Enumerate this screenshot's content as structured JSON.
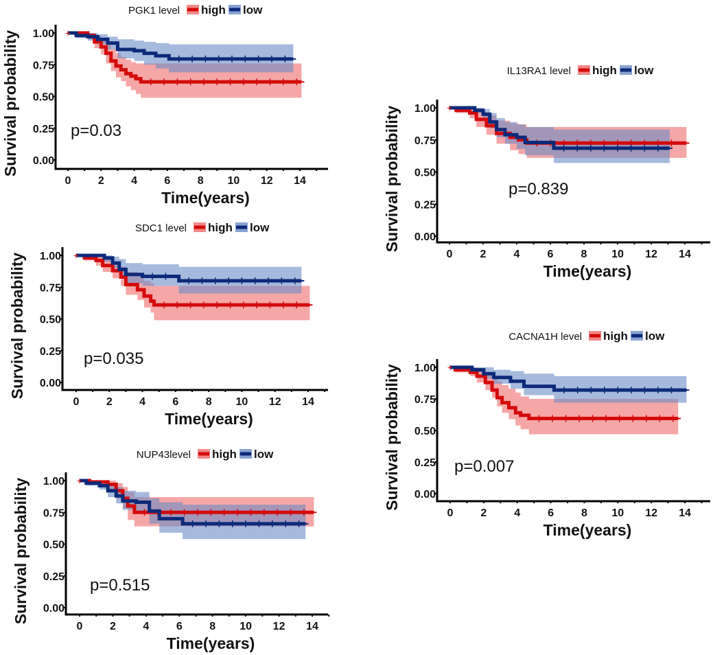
{
  "colors": {
    "high_line": "#d40b0b",
    "high_band": "#ee6b6b",
    "low_line": "#0d2a7a",
    "low_band": "#6b8cc6",
    "axis": "#000000"
  },
  "chart_data": [
    {
      "type": "line",
      "id": "pgk1",
      "title": "PGK1 level",
      "legend": [
        "high",
        "low"
      ],
      "legend_placement": "top",
      "xlabel": "Time(years)",
      "ylabel": "Survival probability",
      "xlim": [
        -0.5,
        15.5
      ],
      "ylim": [
        0,
        1
      ],
      "xticks": [
        "0",
        "2",
        "4",
        "6",
        "8",
        "10",
        "12",
        "14"
      ],
      "yticks": [
        "0.00",
        "0.25",
        "0.50",
        "0.75",
        "1.00"
      ],
      "p_value": "p=0.03",
      "series": [
        {
          "name": "high",
          "x": [
            0,
            1.2,
            1.6,
            2.0,
            2.3,
            2.6,
            2.9,
            3.2,
            3.5,
            3.8,
            4.1,
            4.4,
            14.1
          ],
          "y": [
            1.0,
            0.98,
            0.93,
            0.89,
            0.84,
            0.78,
            0.74,
            0.71,
            0.68,
            0.66,
            0.64,
            0.615,
            0.615
          ],
          "lower": [
            1.0,
            0.95,
            0.88,
            0.83,
            0.76,
            0.7,
            0.65,
            0.62,
            0.58,
            0.55,
            0.52,
            0.49,
            0.49
          ],
          "upper": [
            1.0,
            1.0,
            0.98,
            0.95,
            0.91,
            0.87,
            0.84,
            0.81,
            0.79,
            0.77,
            0.76,
            0.76,
            0.76
          ]
        },
        {
          "name": "low",
          "x": [
            0,
            0.5,
            1.2,
            1.8,
            2.4,
            3.0,
            4.0,
            4.6,
            5.3,
            6.1,
            13.6
          ],
          "y": [
            1.0,
            0.98,
            0.97,
            0.95,
            0.92,
            0.87,
            0.86,
            0.84,
            0.82,
            0.795,
            0.795
          ],
          "lower": [
            1.0,
            0.96,
            0.94,
            0.91,
            0.87,
            0.8,
            0.78,
            0.75,
            0.72,
            0.69,
            0.69
          ],
          "upper": [
            1.0,
            1.0,
            1.0,
            0.99,
            0.97,
            0.95,
            0.94,
            0.93,
            0.92,
            0.91,
            0.91
          ]
        }
      ]
    },
    {
      "type": "line",
      "id": "sdc1",
      "title": "SDC1 level",
      "legend": [
        "high",
        "low"
      ],
      "legend_placement": "top",
      "xlabel": "Time(years)",
      "ylabel": "Survival probability",
      "xlim": [
        -0.5,
        15.5
      ],
      "ylim": [
        0,
        1
      ],
      "xticks": [
        "0",
        "2",
        "4",
        "6",
        "8",
        "10",
        "12",
        "14"
      ],
      "yticks": [
        "0.00",
        "0.25",
        "0.50",
        "0.75",
        "1.00"
      ],
      "p_value": "p=0.035",
      "series": [
        {
          "name": "high",
          "x": [
            0,
            0.5,
            1.2,
            1.6,
            2.2,
            2.7,
            3.0,
            3.7,
            4.1,
            4.5,
            4.7,
            14.1
          ],
          "y": [
            1.0,
            0.98,
            0.96,
            0.92,
            0.88,
            0.83,
            0.77,
            0.73,
            0.68,
            0.64,
            0.61,
            0.61
          ],
          "lower": [
            1.0,
            0.96,
            0.92,
            0.87,
            0.82,
            0.76,
            0.69,
            0.65,
            0.59,
            0.55,
            0.49,
            0.49
          ],
          "upper": [
            1.0,
            1.0,
            1.0,
            0.98,
            0.95,
            0.91,
            0.87,
            0.84,
            0.8,
            0.78,
            0.76,
            0.76
          ]
        },
        {
          "name": "low",
          "x": [
            0,
            1.7,
            2.2,
            2.6,
            3.0,
            4.0,
            6.2,
            13.6
          ],
          "y": [
            1.0,
            0.98,
            0.94,
            0.89,
            0.85,
            0.835,
            0.8,
            0.8
          ],
          "lower": [
            1.0,
            0.95,
            0.9,
            0.83,
            0.78,
            0.76,
            0.7,
            0.7
          ],
          "upper": [
            1.0,
            1.0,
            0.99,
            0.97,
            0.94,
            0.93,
            0.91,
            0.91
          ]
        }
      ]
    },
    {
      "type": "line",
      "id": "nup43",
      "title": "NUP43level",
      "legend": [
        "high",
        "low"
      ],
      "legend_placement": "top",
      "xlabel": "Time(years)",
      "ylabel": "Survival probability",
      "xlim": [
        -0.5,
        15.5
      ],
      "ylim": [
        0,
        1
      ],
      "xticks": [
        "0",
        "2",
        "4",
        "6",
        "8",
        "10",
        "12",
        "14"
      ],
      "yticks": [
        "0.00",
        "0.25",
        "0.50",
        "0.75",
        "1.00"
      ],
      "p_value": "p=0.515",
      "series": [
        {
          "name": "high",
          "x": [
            0,
            0.6,
            1.7,
            2.2,
            2.6,
            2.9,
            3.3,
            14.1
          ],
          "y": [
            1.0,
            0.99,
            0.97,
            0.92,
            0.86,
            0.8,
            0.75,
            0.75
          ],
          "lower": [
            1.0,
            0.97,
            0.93,
            0.86,
            0.78,
            0.69,
            0.64,
            0.64
          ],
          "upper": [
            1.0,
            1.0,
            1.0,
            0.98,
            0.95,
            0.91,
            0.87,
            0.87
          ]
        },
        {
          "name": "low",
          "x": [
            0,
            0.4,
            1.2,
            1.7,
            2.2,
            2.6,
            3.4,
            4.2,
            4.8,
            6.2,
            13.6
          ],
          "y": [
            1.0,
            0.98,
            0.96,
            0.92,
            0.88,
            0.84,
            0.83,
            0.76,
            0.7,
            0.66,
            0.66
          ],
          "lower": [
            1.0,
            0.96,
            0.93,
            0.87,
            0.82,
            0.77,
            0.74,
            0.66,
            0.59,
            0.54,
            0.54
          ],
          "upper": [
            1.0,
            1.0,
            1.0,
            0.98,
            0.95,
            0.92,
            0.91,
            0.86,
            0.83,
            0.81,
            0.81
          ]
        }
      ]
    },
    {
      "type": "line",
      "id": "il13ra1",
      "title": "IL13RA1 level",
      "legend": [
        "high",
        "low"
      ],
      "legend_placement": "top",
      "xlabel": "Time(years)",
      "ylabel": "Survival probability",
      "xlim": [
        -0.5,
        15.5
      ],
      "ylim": [
        0,
        1
      ],
      "xticks": [
        "0",
        "2",
        "4",
        "6",
        "8",
        "10",
        "12",
        "14"
      ],
      "yticks": [
        "0.00",
        "0.25",
        "0.50",
        "0.75",
        "1.00"
      ],
      "p_value": "p=0.839",
      "series": [
        {
          "name": "high",
          "x": [
            0,
            0.4,
            1.2,
            1.6,
            2.2,
            2.8,
            3.6,
            4.1,
            4.6,
            14.1
          ],
          "y": [
            1.0,
            0.98,
            0.96,
            0.91,
            0.86,
            0.8,
            0.77,
            0.75,
            0.725,
            0.725
          ],
          "lower": [
            1.0,
            0.96,
            0.92,
            0.85,
            0.79,
            0.72,
            0.67,
            0.64,
            0.61,
            0.61
          ],
          "upper": [
            1.0,
            1.0,
            1.0,
            0.97,
            0.94,
            0.9,
            0.88,
            0.87,
            0.85,
            0.85
          ]
        },
        {
          "name": "low",
          "x": [
            0,
            1.5,
            2.0,
            2.4,
            2.8,
            3.3,
            4.0,
            4.5,
            6.2,
            13.1
          ],
          "y": [
            1.0,
            0.98,
            0.95,
            0.89,
            0.83,
            0.79,
            0.77,
            0.73,
            0.685,
            0.685
          ],
          "lower": [
            1.0,
            0.96,
            0.91,
            0.84,
            0.77,
            0.72,
            0.68,
            0.63,
            0.57,
            0.57
          ],
          "upper": [
            1.0,
            1.0,
            0.99,
            0.96,
            0.92,
            0.89,
            0.87,
            0.85,
            0.83,
            0.83
          ]
        }
      ]
    },
    {
      "type": "line",
      "id": "cacna1h",
      "title": "CACNA1H level",
      "legend": [
        "high",
        "low"
      ],
      "legend_placement": "top",
      "xlabel": "Time(years)",
      "ylabel": "Survival probability",
      "xlim": [
        -0.5,
        15.5
      ],
      "ylim": [
        0,
        1
      ],
      "xticks": [
        "0",
        "2",
        "4",
        "6",
        "8",
        "10",
        "12",
        "14"
      ],
      "yticks": [
        "0.00",
        "0.25",
        "0.50",
        "0.75",
        "1.00"
      ],
      "p_value": "p=0.007",
      "series": [
        {
          "name": "high",
          "x": [
            0,
            0.3,
            1.2,
            1.6,
            2.1,
            2.5,
            2.8,
            3.1,
            3.5,
            3.9,
            4.2,
            4.7,
            13.6
          ],
          "y": [
            1.0,
            0.98,
            0.96,
            0.93,
            0.88,
            0.82,
            0.76,
            0.72,
            0.68,
            0.64,
            0.62,
            0.595,
            0.595
          ],
          "lower": [
            1.0,
            0.96,
            0.93,
            0.88,
            0.82,
            0.76,
            0.69,
            0.64,
            0.59,
            0.54,
            0.51,
            0.47,
            0.47
          ],
          "upper": [
            1.0,
            1.0,
            1.0,
            0.99,
            0.96,
            0.93,
            0.89,
            0.86,
            0.83,
            0.8,
            0.77,
            0.75,
            0.75
          ]
        },
        {
          "name": "low",
          "x": [
            0,
            1.3,
            2.0,
            2.6,
            3.6,
            4.4,
            6.2,
            14.1
          ],
          "y": [
            1.0,
            0.98,
            0.95,
            0.92,
            0.89,
            0.85,
            0.82,
            0.82
          ],
          "lower": [
            1.0,
            0.96,
            0.91,
            0.87,
            0.83,
            0.78,
            0.72,
            0.72
          ],
          "upper": [
            1.0,
            1.0,
            1.0,
            0.98,
            0.97,
            0.95,
            0.93,
            0.93
          ]
        }
      ]
    }
  ]
}
